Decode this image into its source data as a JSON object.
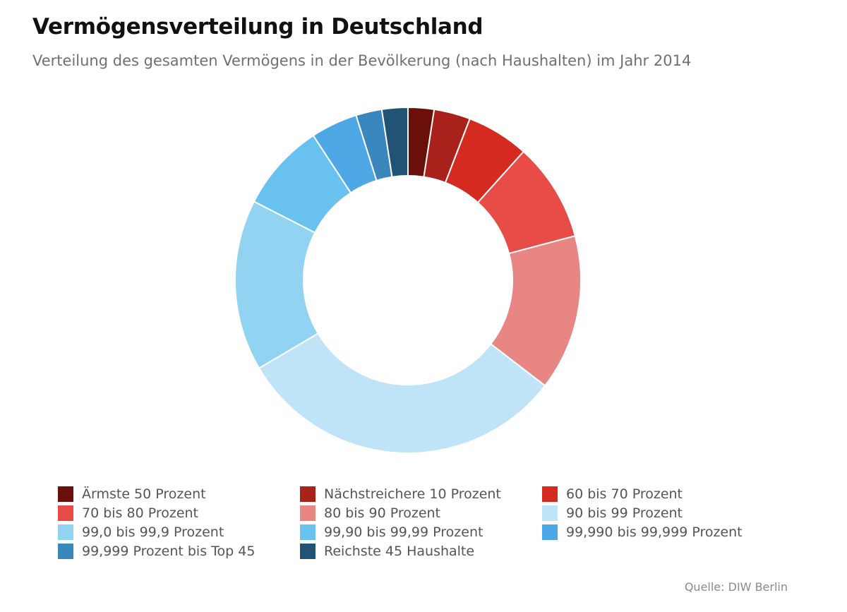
{
  "chart_data": {
    "type": "pie",
    "title": "Vermögensverteilung in Deutschland",
    "subtitle": "Verteilung des gesamten Vermögens in der Bevölkerung (nach Haushalten) im Jahr 2014",
    "source": "Quelle: DIW Berlin",
    "legend_position": "bottom",
    "donut": true,
    "slices": [
      {
        "label": "Ärmste 50 Prozent",
        "value": 2.5,
        "color": "#6b0f0a"
      },
      {
        "label": "Nächstreichere 10 Prozent",
        "value": 3.5,
        "color": "#a8211a"
      },
      {
        "label": "60 bis 70 Prozent",
        "value": 6.0,
        "color": "#d42a20"
      },
      {
        "label": "70 bis 80 Prozent",
        "value": 9.5,
        "color": "#e84c46"
      },
      {
        "label": "80 bis 90 Prozent",
        "value": 15.0,
        "color": "#e88683"
      },
      {
        "label": "90 bis 99 Prozent",
        "value": 32.0,
        "color": "#bfe3f7"
      },
      {
        "label": "99,0 bis 99,9 Prozent",
        "value": 16.5,
        "color": "#93d3f2"
      },
      {
        "label": "99,90 bis 99,99 Prozent",
        "value": 8.5,
        "color": "#69c1ef"
      },
      {
        "label": "99,990 bis 99,999 Prozent",
        "value": 4.5,
        "color": "#4fa8e6"
      },
      {
        "label": "99,999 Prozent bis Top 45",
        "value": 2.5,
        "color": "#3a87bd"
      },
      {
        "label": "Reichste 45 Haushalte",
        "value": 2.5,
        "color": "#225274"
      }
    ]
  }
}
